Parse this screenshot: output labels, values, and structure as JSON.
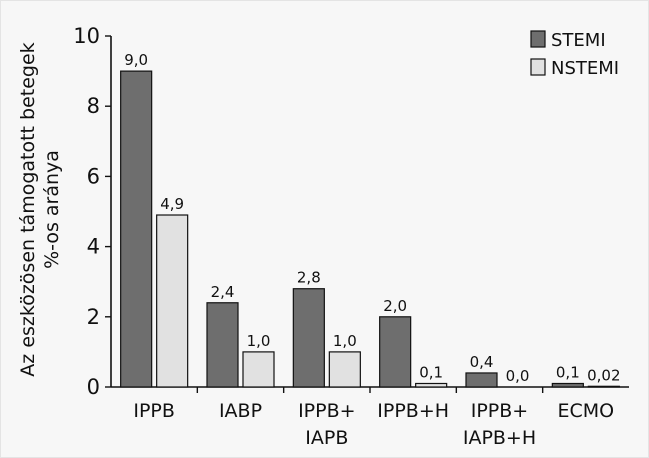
{
  "chart_data": {
    "type": "bar",
    "title": "",
    "xlabel": "",
    "ylabel_lines": [
      "Az eszközösen támogatott betegek",
      "%-os aránya"
    ],
    "ylim": [
      0,
      10
    ],
    "yticks": [
      0,
      2,
      4,
      6,
      8,
      10
    ],
    "grid": false,
    "legend_position": "top-right",
    "categories": [
      [
        "IPPB"
      ],
      [
        "IABP"
      ],
      [
        "IPPB+",
        "IAPB"
      ],
      [
        "IPPB+H"
      ],
      [
        "IPPB+",
        "IAPB+H"
      ],
      [
        "ECMO"
      ]
    ],
    "series": [
      {
        "name": "STEMI",
        "color": "#6e6e6e",
        "values": [
          9.0,
          2.4,
          2.8,
          2.0,
          0.4,
          0.1
        ],
        "labels": [
          "9,0",
          "2,4",
          "2,8",
          "2,0",
          "0,4",
          "0,1"
        ]
      },
      {
        "name": "NSTEMI",
        "color": "#e1e1e1",
        "values": [
          4.9,
          1.0,
          1.0,
          0.1,
          0.0,
          0.02
        ],
        "labels": [
          "4,9",
          "1,0",
          "1,0",
          "0,1",
          "0,0",
          "0,02"
        ]
      }
    ]
  }
}
